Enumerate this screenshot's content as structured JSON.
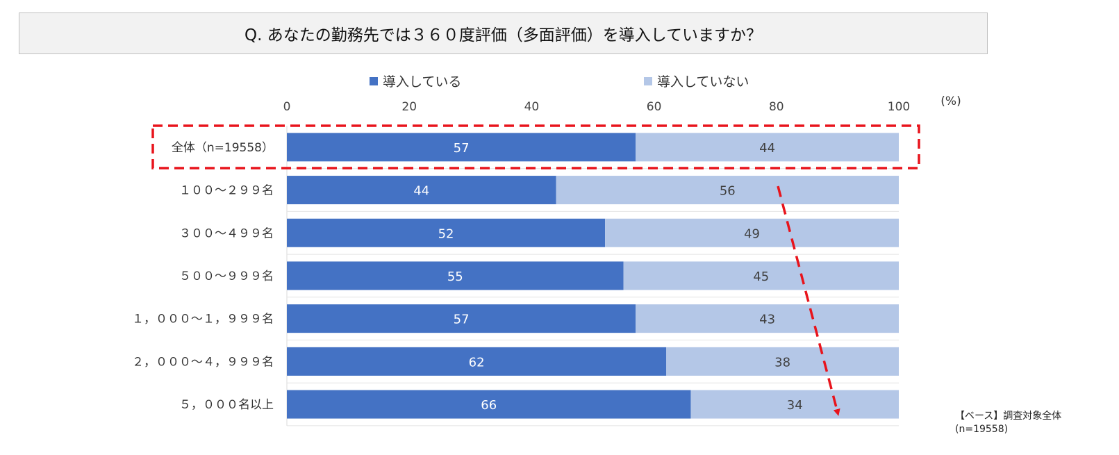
{
  "title": "Q. あなたの勤務先では３６０度評価（多面評価）を導入していますか？",
  "unit_label": "(%)",
  "base_note": {
    "line1": "【ベース】調査対象全体",
    "line2": "(n=19558)"
  },
  "colors": {
    "introduced": "#4472C4",
    "not_introduced": "#B4C7E7",
    "highlight": "#E8141C"
  },
  "chart_data": {
    "type": "bar",
    "orientation": "horizontal",
    "stacked": true,
    "xlim": [
      0,
      100
    ],
    "xticks": [
      "0",
      "20",
      "40",
      "60",
      "80",
      "100"
    ],
    "legend_position": "top",
    "categories": [
      "全体（n=19558）",
      "１００～２９９名",
      "３００～４９９名",
      "５００～９９９名",
      "１，０００～１，９９９名",
      "２，０００～４，９９９名",
      "５，０００名以上"
    ],
    "series": [
      {
        "name": "導入している",
        "values": [
          57,
          44,
          52,
          55,
          57,
          62,
          66
        ],
        "labels": [
          "57",
          "44",
          "52",
          "55",
          "57",
          "62",
          "66"
        ]
      },
      {
        "name": "導入していない",
        "values": [
          44,
          56,
          49,
          45,
          43,
          38,
          34
        ],
        "labels": [
          "44",
          "56",
          "49",
          "45",
          "43",
          "38",
          "34"
        ]
      }
    ],
    "annotations": [
      "dashed-box-around-total",
      "dashed-trend-arrow"
    ]
  }
}
